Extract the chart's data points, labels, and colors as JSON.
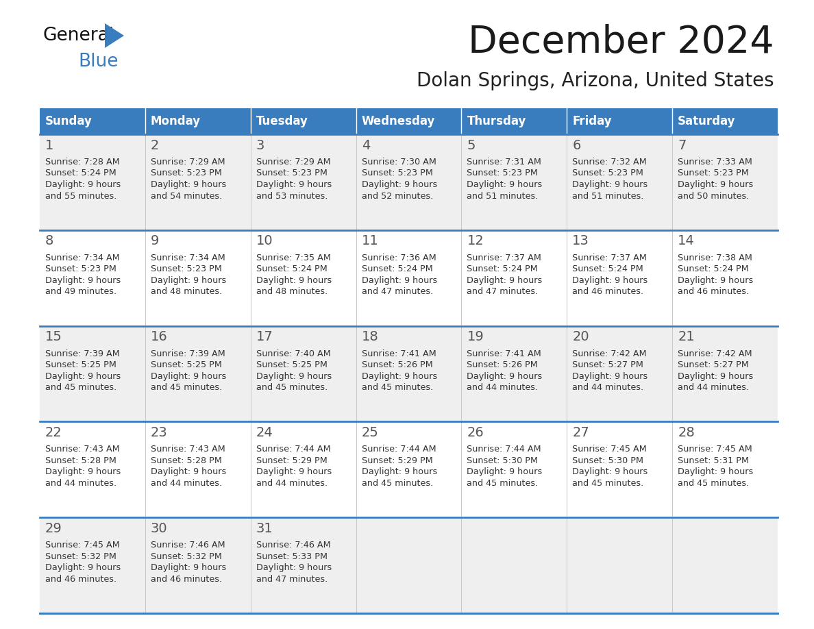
{
  "title": "December 2024",
  "subtitle": "Dolan Springs, Arizona, United States",
  "days_of_week": [
    "Sunday",
    "Monday",
    "Tuesday",
    "Wednesday",
    "Thursday",
    "Friday",
    "Saturday"
  ],
  "header_bg": "#3a7dbf",
  "header_text": "#ffffff",
  "row_bg_odd": "#efefef",
  "row_bg_even": "#ffffff",
  "separator_color": "#3a7dbf",
  "day_number_color": "#555555",
  "cell_text_color": "#333333",
  "calendar_data": [
    [
      {
        "day": "1",
        "sunrise": "7:28 AM",
        "sunset": "5:24 PM",
        "daylight_h": "9 hours",
        "daylight_m": "and 55 minutes."
      },
      {
        "day": "2",
        "sunrise": "7:29 AM",
        "sunset": "5:23 PM",
        "daylight_h": "9 hours",
        "daylight_m": "and 54 minutes."
      },
      {
        "day": "3",
        "sunrise": "7:29 AM",
        "sunset": "5:23 PM",
        "daylight_h": "9 hours",
        "daylight_m": "and 53 minutes."
      },
      {
        "day": "4",
        "sunrise": "7:30 AM",
        "sunset": "5:23 PM",
        "daylight_h": "9 hours",
        "daylight_m": "and 52 minutes."
      },
      {
        "day": "5",
        "sunrise": "7:31 AM",
        "sunset": "5:23 PM",
        "daylight_h": "9 hours",
        "daylight_m": "and 51 minutes."
      },
      {
        "day": "6",
        "sunrise": "7:32 AM",
        "sunset": "5:23 PM",
        "daylight_h": "9 hours",
        "daylight_m": "and 51 minutes."
      },
      {
        "day": "7",
        "sunrise": "7:33 AM",
        "sunset": "5:23 PM",
        "daylight_h": "9 hours",
        "daylight_m": "and 50 minutes."
      }
    ],
    [
      {
        "day": "8",
        "sunrise": "7:34 AM",
        "sunset": "5:23 PM",
        "daylight_h": "9 hours",
        "daylight_m": "and 49 minutes."
      },
      {
        "day": "9",
        "sunrise": "7:34 AM",
        "sunset": "5:23 PM",
        "daylight_h": "9 hours",
        "daylight_m": "and 48 minutes."
      },
      {
        "day": "10",
        "sunrise": "7:35 AM",
        "sunset": "5:24 PM",
        "daylight_h": "9 hours",
        "daylight_m": "and 48 minutes."
      },
      {
        "day": "11",
        "sunrise": "7:36 AM",
        "sunset": "5:24 PM",
        "daylight_h": "9 hours",
        "daylight_m": "and 47 minutes."
      },
      {
        "day": "12",
        "sunrise": "7:37 AM",
        "sunset": "5:24 PM",
        "daylight_h": "9 hours",
        "daylight_m": "and 47 minutes."
      },
      {
        "day": "13",
        "sunrise": "7:37 AM",
        "sunset": "5:24 PM",
        "daylight_h": "9 hours",
        "daylight_m": "and 46 minutes."
      },
      {
        "day": "14",
        "sunrise": "7:38 AM",
        "sunset": "5:24 PM",
        "daylight_h": "9 hours",
        "daylight_m": "and 46 minutes."
      }
    ],
    [
      {
        "day": "15",
        "sunrise": "7:39 AM",
        "sunset": "5:25 PM",
        "daylight_h": "9 hours",
        "daylight_m": "and 45 minutes."
      },
      {
        "day": "16",
        "sunrise": "7:39 AM",
        "sunset": "5:25 PM",
        "daylight_h": "9 hours",
        "daylight_m": "and 45 minutes."
      },
      {
        "day": "17",
        "sunrise": "7:40 AM",
        "sunset": "5:25 PM",
        "daylight_h": "9 hours",
        "daylight_m": "and 45 minutes."
      },
      {
        "day": "18",
        "sunrise": "7:41 AM",
        "sunset": "5:26 PM",
        "daylight_h": "9 hours",
        "daylight_m": "and 45 minutes."
      },
      {
        "day": "19",
        "sunrise": "7:41 AM",
        "sunset": "5:26 PM",
        "daylight_h": "9 hours",
        "daylight_m": "and 44 minutes."
      },
      {
        "day": "20",
        "sunrise": "7:42 AM",
        "sunset": "5:27 PM",
        "daylight_h": "9 hours",
        "daylight_m": "and 44 minutes."
      },
      {
        "day": "21",
        "sunrise": "7:42 AM",
        "sunset": "5:27 PM",
        "daylight_h": "9 hours",
        "daylight_m": "and 44 minutes."
      }
    ],
    [
      {
        "day": "22",
        "sunrise": "7:43 AM",
        "sunset": "5:28 PM",
        "daylight_h": "9 hours",
        "daylight_m": "and 44 minutes."
      },
      {
        "day": "23",
        "sunrise": "7:43 AM",
        "sunset": "5:28 PM",
        "daylight_h": "9 hours",
        "daylight_m": "and 44 minutes."
      },
      {
        "day": "24",
        "sunrise": "7:44 AM",
        "sunset": "5:29 PM",
        "daylight_h": "9 hours",
        "daylight_m": "and 44 minutes."
      },
      {
        "day": "25",
        "sunrise": "7:44 AM",
        "sunset": "5:29 PM",
        "daylight_h": "9 hours",
        "daylight_m": "and 45 minutes."
      },
      {
        "day": "26",
        "sunrise": "7:44 AM",
        "sunset": "5:30 PM",
        "daylight_h": "9 hours",
        "daylight_m": "and 45 minutes."
      },
      {
        "day": "27",
        "sunrise": "7:45 AM",
        "sunset": "5:30 PM",
        "daylight_h": "9 hours",
        "daylight_m": "and 45 minutes."
      },
      {
        "day": "28",
        "sunrise": "7:45 AM",
        "sunset": "5:31 PM",
        "daylight_h": "9 hours",
        "daylight_m": "and 45 minutes."
      }
    ],
    [
      {
        "day": "29",
        "sunrise": "7:45 AM",
        "sunset": "5:32 PM",
        "daylight_h": "9 hours",
        "daylight_m": "and 46 minutes."
      },
      {
        "day": "30",
        "sunrise": "7:46 AM",
        "sunset": "5:32 PM",
        "daylight_h": "9 hours",
        "daylight_m": "and 46 minutes."
      },
      {
        "day": "31",
        "sunrise": "7:46 AM",
        "sunset": "5:33 PM",
        "daylight_h": "9 hours",
        "daylight_m": "and 47 minutes."
      },
      null,
      null,
      null,
      null
    ]
  ],
  "logo_triangle_color": "#3a7dbf",
  "logo_text_color": "#111111",
  "logo_blue_color": "#3a7dbf"
}
